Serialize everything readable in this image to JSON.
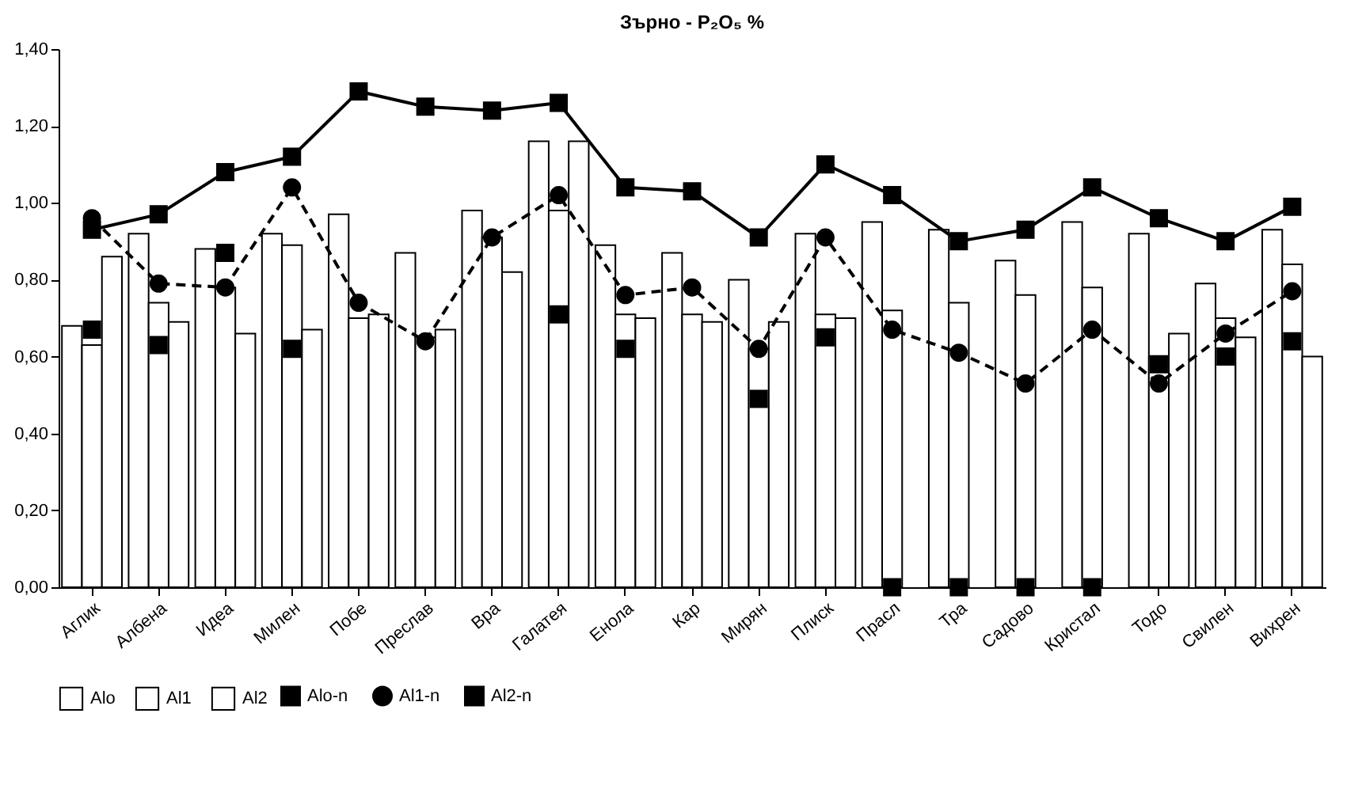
{
  "chart_data": {
    "type": "bar",
    "title": "Зърно - P₂O₅ %",
    "categories": [
      "Аглик",
      "Албена",
      "Идеа",
      "Милен",
      "Побе",
      "Преслав",
      "Вра",
      "Галатея",
      "Енола",
      "Кар",
      "Мирян",
      "Плиск",
      "Прасл",
      "Тра",
      "Садово",
      "Кристал",
      "Тодо",
      "Свилен",
      "Вихрен"
    ],
    "series": [
      {
        "name": "Alo",
        "color": "#ffffff",
        "values": [
          0.68,
          0.92,
          0.88,
          0.92,
          0.97,
          0.87,
          0.98,
          1.16,
          0.89,
          0.87,
          0.8,
          0.92,
          0.95,
          0.93,
          0.85,
          0.95,
          0.92,
          0.79,
          0.93
        ]
      },
      {
        "name": "Al1",
        "color": "#ffffff",
        "values": [
          0.63,
          0.74,
          0.78,
          0.89,
          0.7,
          0.65,
          0.91,
          0.98,
          0.71,
          0.71,
          0.62,
          0.71,
          0.72,
          0.74,
          0.76,
          0.78,
          0.6,
          0.7,
          0.84
        ]
      },
      {
        "name": "Al2",
        "color": "#ffffff",
        "values": [
          0.86,
          0.69,
          0.66,
          0.67,
          0.71,
          0.67,
          0.82,
          1.16,
          0.7,
          0.69,
          0.69,
          0.7,
          null,
          null,
          null,
          null,
          0.66,
          0.65,
          0.6
        ]
      },
      {
        "name": "Alo-n",
        "type": "line",
        "color": "#000000",
        "marker": "square",
        "line_style": "solid",
        "values": [
          0.93,
          0.97,
          1.08,
          1.12,
          1.29,
          1.25,
          1.24,
          1.26,
          1.04,
          1.03,
          0.91,
          1.1,
          1.02,
          0.9,
          0.93,
          1.04,
          0.96,
          0.9,
          0.99
        ]
      },
      {
        "name": "Al1-n",
        "type": "line",
        "color": "#000000",
        "marker": "circle",
        "line_style": "dashed",
        "values": [
          0.96,
          0.79,
          0.78,
          1.04,
          0.74,
          0.64,
          0.91,
          1.02,
          0.76,
          0.78,
          0.62,
          0.91,
          0.67,
          0.61,
          0.53,
          0.67,
          0.53,
          0.66,
          0.77
        ]
      },
      {
        "name": "Al2-n",
        "type": "scatter",
        "color": "#000000",
        "marker": "square",
        "values": [
          0.67,
          0.63,
          0.87,
          0.62,
          null,
          null,
          null,
          0.71,
          0.62,
          null,
          0.49,
          0.65,
          0,
          0,
          0,
          0,
          0.58,
          0.6,
          0.64
        ]
      }
    ],
    "ylim": [
      0,
      1.4
    ],
    "yticks": [
      {
        "value": 0,
        "label": "0,00"
      },
      {
        "value": 0.2,
        "label": "0,20"
      },
      {
        "value": 0.4,
        "label": "0,40"
      },
      {
        "value": 0.6,
        "label": "0,60"
      },
      {
        "value": 0.8,
        "label": "0,80"
      },
      {
        "value": 1,
        "label": "1,00"
      },
      {
        "value": 1.2,
        "label": "1,20"
      },
      {
        "value": 1.4,
        "label": "1,40"
      }
    ],
    "grid": false,
    "legend": "bottom"
  }
}
